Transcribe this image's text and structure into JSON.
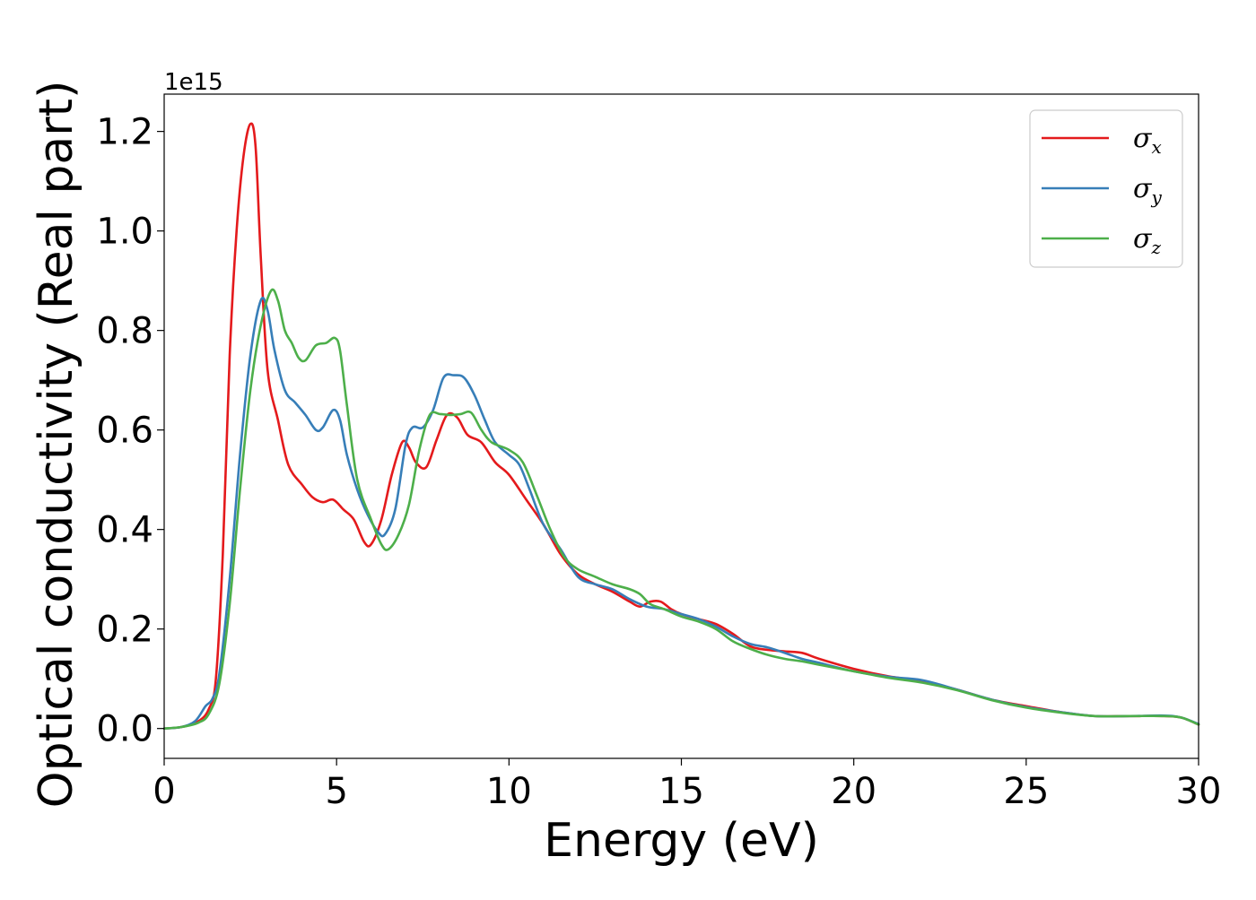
{
  "chart_data": {
    "type": "line",
    "xlabel": "Energy (eV)",
    "ylabel": "Optical conductivity (Real part)",
    "y_offset_label": "1e15",
    "y_scale": 1000000000000000.0,
    "xlim": [
      0,
      30
    ],
    "ylim": [
      -0.06,
      1.275
    ],
    "x_ticks": [
      0,
      5,
      10,
      15,
      20,
      25,
      30
    ],
    "x_tick_labels": [
      "0",
      "5",
      "10",
      "15",
      "20",
      "25",
      "30"
    ],
    "y_ticks": [
      0.0,
      0.2,
      0.4,
      0.6,
      0.8,
      1.0,
      1.2
    ],
    "y_tick_labels": [
      "0.0",
      "0.2",
      "0.4",
      "0.6",
      "0.8",
      "1.0",
      "1.2"
    ],
    "grid": false,
    "legend_position": "top-right",
    "series": [
      {
        "name": "σx",
        "legend_symbol": "σ",
        "legend_sub": "x",
        "color": "#e41a1c",
        "points": [
          [
            0,
            0
          ],
          [
            0.5,
            0.003
          ],
          [
            1.0,
            0.015
          ],
          [
            1.3,
            0.04
          ],
          [
            1.5,
            0.1
          ],
          [
            1.7,
            0.35
          ],
          [
            1.9,
            0.75
          ],
          [
            2.1,
            1.0
          ],
          [
            2.3,
            1.15
          ],
          [
            2.5,
            1.215
          ],
          [
            2.65,
            1.17
          ],
          [
            2.8,
            0.95
          ],
          [
            3.0,
            0.72
          ],
          [
            3.3,
            0.62
          ],
          [
            3.6,
            0.53
          ],
          [
            4.0,
            0.49
          ],
          [
            4.3,
            0.465
          ],
          [
            4.6,
            0.455
          ],
          [
            4.9,
            0.46
          ],
          [
            5.2,
            0.44
          ],
          [
            5.5,
            0.42
          ],
          [
            5.8,
            0.375
          ],
          [
            6.0,
            0.37
          ],
          [
            6.3,
            0.42
          ],
          [
            6.6,
            0.51
          ],
          [
            6.9,
            0.575
          ],
          [
            7.1,
            0.565
          ],
          [
            7.3,
            0.535
          ],
          [
            7.6,
            0.525
          ],
          [
            7.9,
            0.58
          ],
          [
            8.2,
            0.63
          ],
          [
            8.5,
            0.625
          ],
          [
            8.8,
            0.59
          ],
          [
            9.2,
            0.575
          ],
          [
            9.6,
            0.535
          ],
          [
            10.0,
            0.51
          ],
          [
            10.5,
            0.46
          ],
          [
            11.0,
            0.41
          ],
          [
            11.5,
            0.35
          ],
          [
            12.0,
            0.31
          ],
          [
            12.5,
            0.29
          ],
          [
            13.0,
            0.275
          ],
          [
            13.5,
            0.255
          ],
          [
            13.8,
            0.245
          ],
          [
            14.1,
            0.255
          ],
          [
            14.4,
            0.255
          ],
          [
            14.7,
            0.24
          ],
          [
            15.0,
            0.23
          ],
          [
            15.5,
            0.22
          ],
          [
            16.0,
            0.21
          ],
          [
            16.5,
            0.19
          ],
          [
            17.0,
            0.165
          ],
          [
            17.5,
            0.158
          ],
          [
            18.0,
            0.155
          ],
          [
            18.5,
            0.152
          ],
          [
            19.0,
            0.14
          ],
          [
            20.0,
            0.12
          ],
          [
            21.0,
            0.105
          ],
          [
            22.0,
            0.095
          ],
          [
            23.0,
            0.078
          ],
          [
            24.0,
            0.058
          ],
          [
            25.0,
            0.045
          ],
          [
            26.0,
            0.033
          ],
          [
            27.0,
            0.025
          ],
          [
            28.0,
            0.025
          ],
          [
            29.0,
            0.025
          ],
          [
            29.5,
            0.022
          ],
          [
            30.0,
            0.008
          ]
        ]
      },
      {
        "name": "σy",
        "legend_symbol": "σ",
        "legend_sub": "y",
        "color": "#377eb8",
        "points": [
          [
            0,
            0
          ],
          [
            0.5,
            0.003
          ],
          [
            0.9,
            0.015
          ],
          [
            1.2,
            0.045
          ],
          [
            1.4,
            0.06
          ],
          [
            1.6,
            0.11
          ],
          [
            1.9,
            0.3
          ],
          [
            2.2,
            0.55
          ],
          [
            2.5,
            0.75
          ],
          [
            2.8,
            0.86
          ],
          [
            3.0,
            0.84
          ],
          [
            3.2,
            0.76
          ],
          [
            3.5,
            0.68
          ],
          [
            3.8,
            0.655
          ],
          [
            4.1,
            0.63
          ],
          [
            4.4,
            0.6
          ],
          [
            4.6,
            0.605
          ],
          [
            4.9,
            0.64
          ],
          [
            5.1,
            0.62
          ],
          [
            5.3,
            0.55
          ],
          [
            5.6,
            0.48
          ],
          [
            5.9,
            0.43
          ],
          [
            6.2,
            0.395
          ],
          [
            6.4,
            0.39
          ],
          [
            6.7,
            0.44
          ],
          [
            7.0,
            0.57
          ],
          [
            7.2,
            0.605
          ],
          [
            7.5,
            0.605
          ],
          [
            7.8,
            0.64
          ],
          [
            8.1,
            0.705
          ],
          [
            8.4,
            0.71
          ],
          [
            8.7,
            0.705
          ],
          [
            9.0,
            0.67
          ],
          [
            9.3,
            0.62
          ],
          [
            9.6,
            0.575
          ],
          [
            10.0,
            0.55
          ],
          [
            10.3,
            0.53
          ],
          [
            10.6,
            0.48
          ],
          [
            11.0,
            0.41
          ],
          [
            11.5,
            0.36
          ],
          [
            12.0,
            0.305
          ],
          [
            12.5,
            0.29
          ],
          [
            13.0,
            0.28
          ],
          [
            13.5,
            0.26
          ],
          [
            14.0,
            0.245
          ],
          [
            14.5,
            0.24
          ],
          [
            15.0,
            0.23
          ],
          [
            15.5,
            0.22
          ],
          [
            16.0,
            0.205
          ],
          [
            16.5,
            0.185
          ],
          [
            17.0,
            0.17
          ],
          [
            17.5,
            0.163
          ],
          [
            18.0,
            0.152
          ],
          [
            18.5,
            0.14
          ],
          [
            19.0,
            0.132
          ],
          [
            20.0,
            0.115
          ],
          [
            21.0,
            0.104
          ],
          [
            22.0,
            0.097
          ],
          [
            23.0,
            0.078
          ],
          [
            24.0,
            0.058
          ],
          [
            25.0,
            0.043
          ],
          [
            26.0,
            0.033
          ],
          [
            27.0,
            0.025
          ],
          [
            28.0,
            0.025
          ],
          [
            29.0,
            0.026
          ],
          [
            29.5,
            0.022
          ],
          [
            30.0,
            0.009
          ]
        ]
      },
      {
        "name": "σz",
        "legend_symbol": "σ",
        "legend_sub": "z",
        "color": "#4daf4a",
        "points": [
          [
            0,
            0
          ],
          [
            0.5,
            0.003
          ],
          [
            1.0,
            0.012
          ],
          [
            1.3,
            0.03
          ],
          [
            1.6,
            0.09
          ],
          [
            1.9,
            0.25
          ],
          [
            2.2,
            0.48
          ],
          [
            2.5,
            0.68
          ],
          [
            2.8,
            0.81
          ],
          [
            3.1,
            0.88
          ],
          [
            3.3,
            0.86
          ],
          [
            3.5,
            0.8
          ],
          [
            3.7,
            0.775
          ],
          [
            3.9,
            0.745
          ],
          [
            4.1,
            0.74
          ],
          [
            4.4,
            0.77
          ],
          [
            4.7,
            0.775
          ],
          [
            4.95,
            0.785
          ],
          [
            5.1,
            0.76
          ],
          [
            5.3,
            0.65
          ],
          [
            5.6,
            0.5
          ],
          [
            6.0,
            0.42
          ],
          [
            6.3,
            0.37
          ],
          [
            6.5,
            0.36
          ],
          [
            6.8,
            0.39
          ],
          [
            7.1,
            0.45
          ],
          [
            7.4,
            0.56
          ],
          [
            7.7,
            0.63
          ],
          [
            8.0,
            0.632
          ],
          [
            8.3,
            0.63
          ],
          [
            8.6,
            0.632
          ],
          [
            8.9,
            0.635
          ],
          [
            9.2,
            0.6
          ],
          [
            9.5,
            0.575
          ],
          [
            10.0,
            0.56
          ],
          [
            10.4,
            0.535
          ],
          [
            10.8,
            0.47
          ],
          [
            11.2,
            0.4
          ],
          [
            11.6,
            0.345
          ],
          [
            12.0,
            0.32
          ],
          [
            12.5,
            0.305
          ],
          [
            13.0,
            0.29
          ],
          [
            13.5,
            0.28
          ],
          [
            13.8,
            0.27
          ],
          [
            14.1,
            0.25
          ],
          [
            14.5,
            0.24
          ],
          [
            15.0,
            0.225
          ],
          [
            15.5,
            0.215
          ],
          [
            16.0,
            0.2
          ],
          [
            16.5,
            0.175
          ],
          [
            17.0,
            0.16
          ],
          [
            17.5,
            0.148
          ],
          [
            18.0,
            0.14
          ],
          [
            18.5,
            0.135
          ],
          [
            19.0,
            0.128
          ],
          [
            20.0,
            0.115
          ],
          [
            21.0,
            0.102
          ],
          [
            22.0,
            0.092
          ],
          [
            23.0,
            0.077
          ],
          [
            24.0,
            0.057
          ],
          [
            25.0,
            0.042
          ],
          [
            26.0,
            0.032
          ],
          [
            27.0,
            0.025
          ],
          [
            28.0,
            0.025
          ],
          [
            29.0,
            0.025
          ],
          [
            29.5,
            0.022
          ],
          [
            30.0,
            0.008
          ]
        ]
      }
    ]
  }
}
